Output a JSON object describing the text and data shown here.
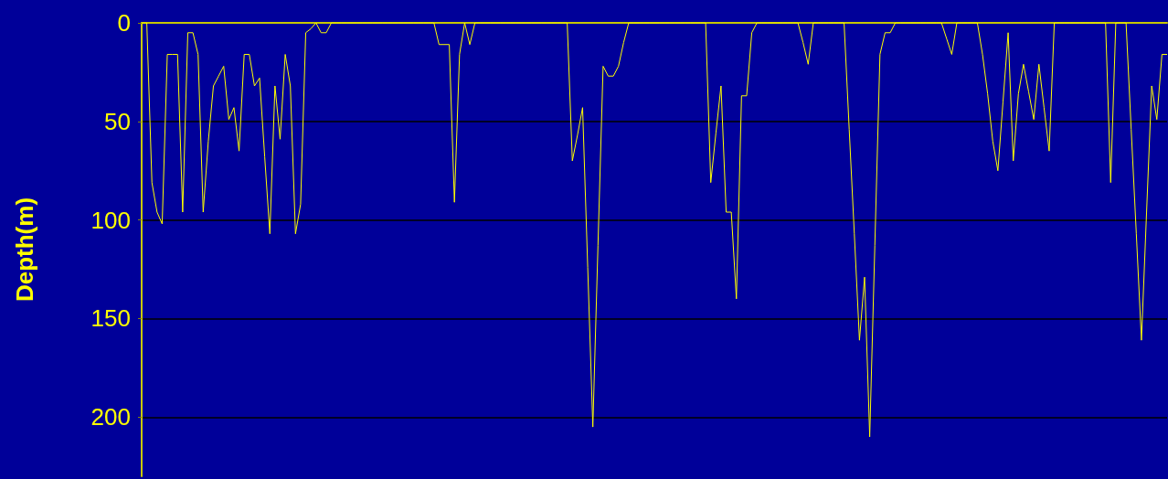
{
  "chart_data": {
    "type": "line",
    "ylabel": "Depth(m)",
    "color": "#ffff00",
    "categories": [
      null,
      null,
      null,
      null,
      null,
      null,
      null,
      null,
      null,
      null,
      null,
      null,
      null,
      null,
      null,
      null,
      null,
      null,
      null,
      null,
      null,
      null,
      null,
      null,
      null,
      null,
      null,
      null,
      null,
      null,
      null,
      null,
      null,
      null,
      null,
      null,
      null,
      null,
      null,
      null,
      null,
      null,
      null,
      null,
      null,
      null,
      null,
      null,
      null,
      null,
      null,
      null,
      null,
      null,
      null,
      null,
      null,
      null,
      null,
      null,
      null,
      null,
      null,
      null,
      null,
      null,
      null,
      null,
      null,
      null,
      null,
      null,
      null,
      null,
      null,
      null,
      null,
      null,
      null,
      null,
      null,
      null,
      null,
      null,
      null,
      null,
      null,
      null,
      null,
      null,
      null,
      null,
      null,
      null,
      null,
      null,
      null,
      null,
      null,
      null,
      null,
      null,
      null,
      null,
      null,
      null,
      null,
      null,
      null,
      null,
      null,
      null,
      null,
      null,
      null,
      null,
      null,
      null,
      null,
      null,
      null,
      null,
      null,
      null,
      null,
      null,
      null,
      null,
      null,
      null,
      null,
      null,
      null,
      null,
      null,
      null,
      null,
      null,
      null,
      null,
      null,
      null,
      null,
      null,
      null,
      null,
      null,
      null,
      null,
      null,
      null,
      null,
      null,
      null,
      null,
      null,
      null,
      null,
      null,
      null,
      null,
      null,
      null,
      null,
      null,
      null,
      null,
      null,
      null,
      null,
      null,
      null,
      null,
      null,
      null,
      null,
      null,
      null,
      null,
      null,
      null,
      null,
      null,
      null,
      null,
      null,
      null,
      null,
      null,
      null,
      null,
      null,
      null,
      null,
      null,
      null,
      null,
      null,
      null,
      null,
      null
    ],
    "values": [
      0,
      0,
      81,
      96,
      102,
      16,
      16,
      16,
      96,
      5,
      5,
      16,
      96,
      60,
      32,
      27,
      22,
      49,
      43,
      65,
      16,
      16,
      32,
      28,
      68,
      107,
      32,
      59,
      16,
      32,
      107,
      92,
      5,
      3,
      0,
      5,
      5,
      0,
      0,
      0,
      0,
      0,
      0,
      0,
      0,
      0,
      0,
      0,
      0,
      0,
      0,
      0,
      0,
      0,
      0,
      0,
      0,
      0,
      11,
      11,
      11,
      91,
      16,
      0,
      11,
      0,
      0,
      0,
      0,
      0,
      0,
      0,
      0,
      0,
      0,
      0,
      0,
      0,
      0,
      0,
      0,
      0,
      0,
      0,
      70,
      57,
      43,
      124,
      205,
      113,
      22,
      27,
      27,
      22,
      10,
      0,
      0,
      0,
      0,
      0,
      0,
      0,
      0,
      0,
      0,
      0,
      0,
      0,
      0,
      0,
      0,
      81,
      56,
      32,
      96,
      96,
      140,
      37,
      37,
      5,
      0,
      0,
      0,
      0,
      0,
      0,
      0,
      0,
      0,
      10,
      21,
      0,
      0,
      0,
      0,
      0,
      0,
      0,
      54,
      107,
      161,
      129,
      210,
      113,
      16,
      5,
      5,
      0,
      0,
      0,
      0,
      0,
      0,
      0,
      0,
      0,
      0,
      8,
      16,
      0,
      0,
      0,
      0,
      0,
      16,
      36,
      60,
      75,
      40,
      5,
      70,
      36,
      21,
      35,
      49,
      21,
      43,
      65,
      0,
      0,
      0,
      0,
      0,
      0,
      0,
      0,
      0,
      0,
      0,
      81,
      0,
      0,
      0,
      54,
      107,
      161,
      96,
      32,
      49,
      16,
      16
    ],
    "ylim": [
      230,
      0
    ],
    "yticks": [
      0,
      50,
      100,
      150,
      200
    ],
    "grid": "y",
    "tick_labels": "y",
    "line_style": "solid"
  }
}
